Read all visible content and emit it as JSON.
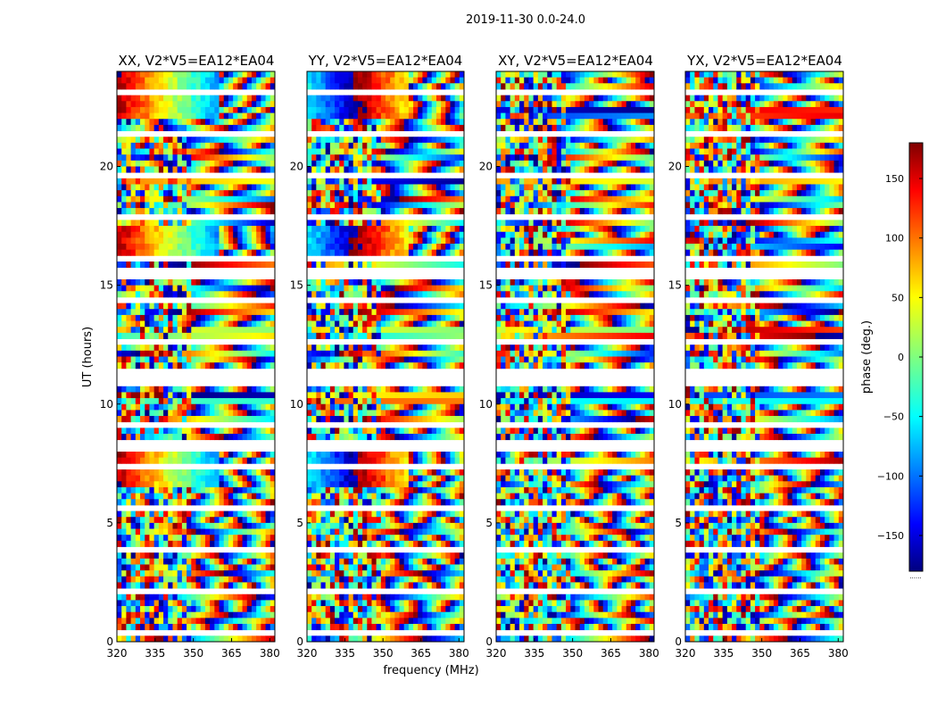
{
  "figure": {
    "suptitle": "2019-11-30 0.0-24.0",
    "xlabel": "frequency (MHz)",
    "ylabel": "UT (hours)",
    "colorbar_label": "phase (deg.)",
    "colorbar_ticks": [
      150,
      100,
      50,
      0,
      -50,
      -100,
      -150
    ],
    "colorbar_range": [
      -180,
      180
    ],
    "colorbar_footer": "......",
    "colormap": [
      "#00007f",
      "#0000ff",
      "#00ffff",
      "#7fff7f",
      "#ffff00",
      "#ff0000",
      "#7f0000"
    ]
  },
  "chart_data": [
    {
      "type": "heatmap",
      "title": "XX, V2*V5=EA12*EA04",
      "xlim": [
        320,
        382
      ],
      "ylim": [
        0,
        24
      ],
      "xticks": [
        320,
        335,
        350,
        365,
        380
      ],
      "yticks": [
        0,
        5,
        10,
        15,
        20
      ],
      "value_range": [
        -180,
        180
      ],
      "value_label": "phase (deg.)"
    },
    {
      "type": "heatmap",
      "title": "YY, V2*V5=EA12*EA04",
      "xlim": [
        320,
        382
      ],
      "ylim": [
        0,
        24
      ],
      "xticks": [
        320,
        335,
        350,
        365,
        380
      ],
      "yticks": [
        0,
        5,
        10,
        15,
        20
      ],
      "value_range": [
        -180,
        180
      ],
      "value_label": "phase (deg.)"
    },
    {
      "type": "heatmap",
      "title": "XY, V2*V5=EA12*EA04",
      "xlim": [
        320,
        382
      ],
      "ylim": [
        0,
        24
      ],
      "xticks": [
        320,
        335,
        350,
        365,
        380
      ],
      "yticks": [
        0,
        5,
        10,
        15,
        20
      ],
      "value_range": [
        -180,
        180
      ],
      "value_label": "phase (deg.)"
    },
    {
      "type": "heatmap",
      "title": "YX, V2*V5=EA12*EA04",
      "xlim": [
        320,
        382
      ],
      "ylim": [
        0,
        24
      ],
      "xticks": [
        320,
        335,
        350,
        365,
        380
      ],
      "yticks": [
        0,
        5,
        10,
        15,
        20
      ],
      "value_range": [
        -180,
        180
      ],
      "value_label": "phase (deg.)"
    }
  ]
}
